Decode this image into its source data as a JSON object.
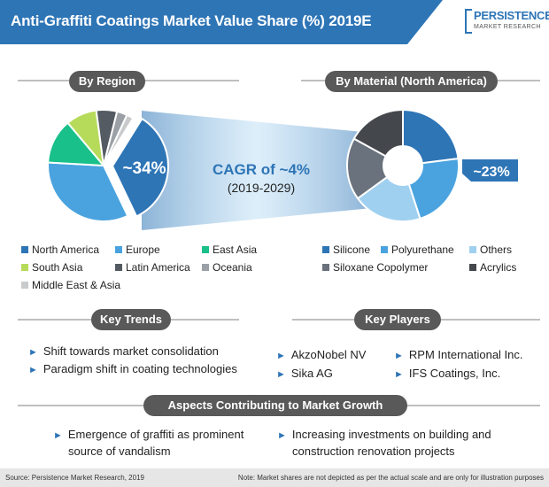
{
  "title": "Anti-Graffiti Coatings Market Value Share (%) 2019E",
  "logo": {
    "line1": "PERSISTENCE",
    "line2": "MARKET RESEARCH"
  },
  "region_panel": {
    "heading": "By Region",
    "highlight": "~34%",
    "legend": [
      {
        "label": "North America",
        "color": "#2e75b6"
      },
      {
        "label": "Europe",
        "color": "#4aa3df"
      },
      {
        "label": "East Asia",
        "color": "#19c08a"
      },
      {
        "label": "South Asia",
        "color": "#b6db5b"
      },
      {
        "label": "Latin America",
        "color": "#545b62"
      },
      {
        "label": "Oceania",
        "color": "#9aa0a6"
      },
      {
        "label": "Middle East & Asia",
        "color": "#c8cacc"
      }
    ]
  },
  "cagr": {
    "line1": "CAGR of ~4%",
    "line2": "(2019-2029)"
  },
  "material_panel": {
    "heading": "By Material (North America)",
    "highlight": "~23%",
    "legend": [
      {
        "label": "Silicone",
        "color": "#2e75b6"
      },
      {
        "label": "Polyurethane",
        "color": "#4aa3df"
      },
      {
        "label": "Others",
        "color": "#9fd0f0"
      },
      {
        "label": "Siloxane Copolymer",
        "color": "#69727d"
      },
      {
        "label": "Acrylics",
        "color": "#44484d"
      }
    ]
  },
  "key_trends": {
    "heading": "Key Trends",
    "items": [
      "Shift towards market consolidation",
      "Paradigm shift in coating technologies"
    ]
  },
  "key_players": {
    "heading": "Key Players",
    "items": [
      "AkzoNobel NV",
      "RPM International Inc.",
      "Sika AG",
      "IFS Coatings, Inc."
    ]
  },
  "aspects": {
    "heading": "Aspects Contributing to Market Growth",
    "items": [
      {
        "line1": "Emergence of graffiti as prominent",
        "line2": "source of vandalism"
      },
      {
        "line1": "Increasing investments on building and",
        "line2": "construction renovation projects"
      }
    ]
  },
  "footer": {
    "source": "Source: Persistence Market Research, 2019",
    "note": "Note: Market shares are not depicted as per the actual scale and are only for illustration purposes"
  },
  "chart_data": [
    {
      "type": "pie",
      "title": "By Region",
      "categories": [
        "North America",
        "Europe",
        "East Asia",
        "South Asia",
        "Latin America",
        "Oceania",
        "Middle East & Asia"
      ],
      "values": [
        34,
        33,
        13,
        9,
        6,
        3,
        2
      ],
      "colors": [
        "#2e75b6",
        "#4aa3df",
        "#19c08a",
        "#b6db5b",
        "#545b62",
        "#9aa0a6",
        "#c8cacc"
      ],
      "highlight_label": "~34%"
    },
    {
      "type": "pie",
      "title": "By Material (North America)",
      "categories": [
        "Silicone",
        "Polyurethane",
        "Others",
        "Siloxane Copolymer",
        "Acrylics"
      ],
      "values": [
        23,
        22,
        20,
        18,
        17
      ],
      "colors": [
        "#2e75b6",
        "#4aa3df",
        "#9fd0f0",
        "#69727d",
        "#44484d"
      ],
      "highlight_label": "~23%"
    }
  ]
}
